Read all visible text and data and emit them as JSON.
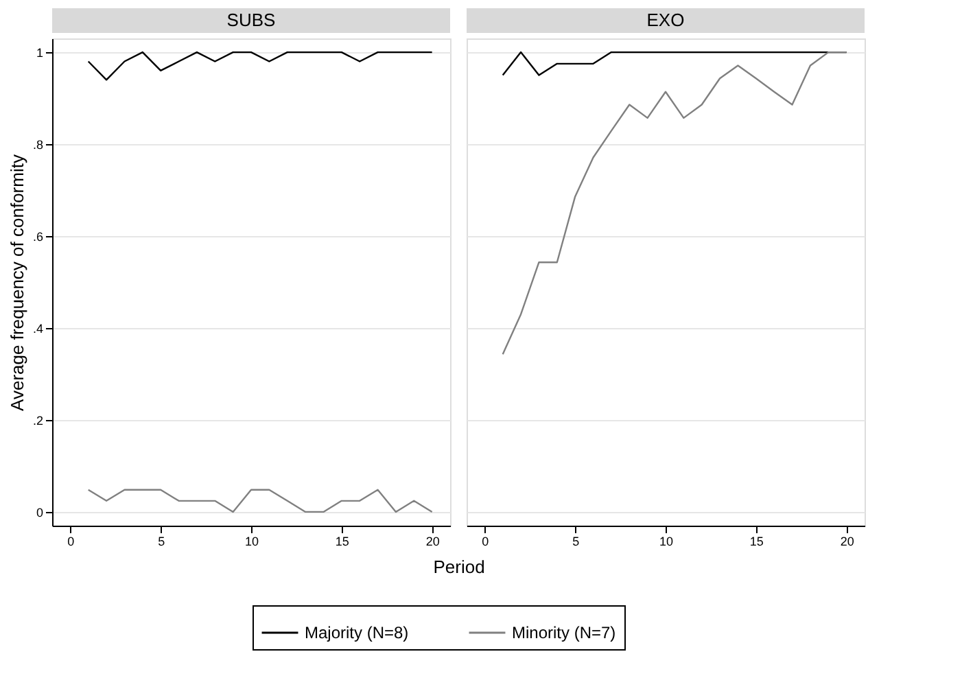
{
  "chart_data": [
    {
      "type": "line",
      "title": "SUBS",
      "xlabel": "Period",
      "ylabel": "Average frequency of conformity",
      "x": [
        1,
        2,
        3,
        4,
        5,
        6,
        7,
        8,
        9,
        10,
        11,
        12,
        13,
        14,
        15,
        16,
        17,
        18,
        19,
        20
      ],
      "series": [
        {
          "name": "Majority (N=8)",
          "color": "#000000",
          "values": [
            0.98,
            0.94,
            0.98,
            1,
            0.96,
            0.98,
            1,
            0.98,
            1,
            1,
            0.98,
            1,
            1,
            1,
            1,
            0.98,
            1,
            1,
            1,
            1
          ]
        },
        {
          "name": "Minority (N=7)",
          "color": "#808080",
          "values": [
            0.048,
            0.024,
            0.048,
            0.048,
            0.048,
            0.024,
            0.024,
            0.024,
            0,
            0.048,
            0.048,
            0.024,
            0,
            0,
            0.024,
            0.024,
            0.048,
            0,
            0.024,
            0
          ]
        }
      ],
      "xlim": [
        -1,
        21
      ],
      "xticks": [
        0,
        5,
        10,
        15,
        20
      ],
      "ylim": [
        -0.03,
        1.03
      ],
      "yticks": [
        {
          "value": 0,
          "label": "0"
        },
        {
          "value": 0.2,
          "label": ".2"
        },
        {
          "value": 0.4,
          "label": ".4"
        },
        {
          "value": 0.6,
          "label": ".6"
        },
        {
          "value": 0.8,
          "label": ".8"
        },
        {
          "value": 1,
          "label": "1"
        }
      ],
      "grid": "y",
      "legend": "bottom"
    },
    {
      "type": "line",
      "title": "EXO",
      "x": [
        1,
        2,
        3,
        4,
        5,
        6,
        7,
        8,
        9,
        10,
        11,
        12,
        13,
        14,
        15,
        16,
        17,
        18,
        19,
        20
      ],
      "series": [
        {
          "color": "#000000",
          "values": [
            0.95,
            1,
            0.95,
            0.975,
            0.975,
            0.975,
            1,
            1,
            1,
            1,
            1,
            1,
            1,
            1,
            1,
            1,
            1,
            1,
            1,
            1
          ]
        },
        {
          "color": "#808080",
          "values": [
            0.343,
            0.43,
            0.543,
            0.543,
            0.686,
            0.771,
            0.829,
            0.886,
            0.857,
            0.914,
            0.857,
            0.886,
            0.943,
            0.971,
            0.943,
            0.914,
            0.886,
            0.971,
            1,
            1
          ]
        }
      ],
      "xlim": [
        -1,
        21
      ],
      "xticks": [
        0,
        5,
        10,
        15,
        20
      ],
      "ylim": [
        -0.03,
        1.03
      ],
      "yticks": [
        0,
        0.2,
        0.4,
        0.6,
        0.8,
        1
      ],
      "grid": "y",
      "tick_labels": "x"
    }
  ]
}
